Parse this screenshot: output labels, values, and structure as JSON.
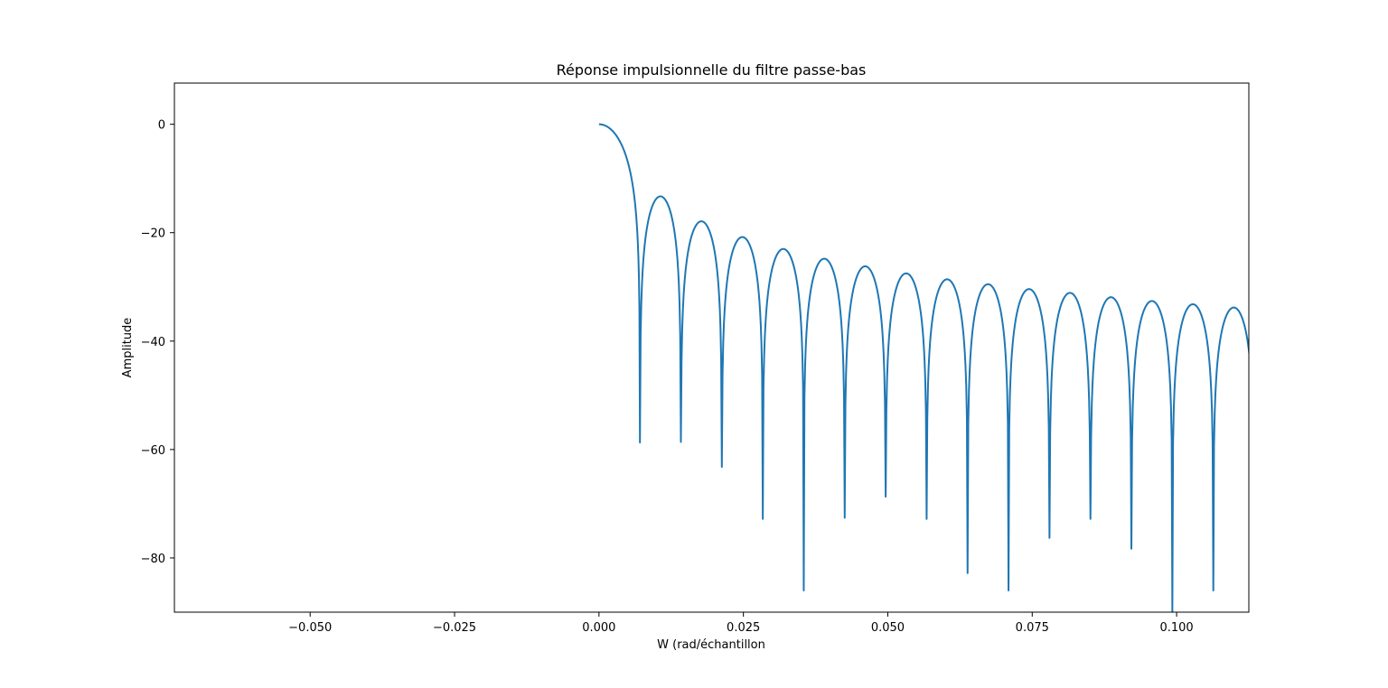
{
  "chart_data": {
    "type": "line",
    "title": "Réponse impulsionnelle du filtre passe-bas",
    "xlabel": "W (rad/échantillon",
    "ylabel": "Amplitude",
    "xlim": [
      -0.0735,
      0.1125
    ],
    "ylim": [
      -90,
      7.6
    ],
    "x_ticks": [
      -0.05,
      -0.025,
      0.0,
      0.025,
      0.05,
      0.075,
      0.1
    ],
    "x_tick_labels": [
      "−0.050",
      "−0.025",
      "0.000",
      "0.025",
      "0.050",
      "0.075",
      "0.100"
    ],
    "y_ticks": [
      0,
      -20,
      -40,
      -60,
      -80
    ],
    "y_tick_labels": [
      "0",
      "−20",
      "−40",
      "−60",
      "−80"
    ],
    "grid": false,
    "series_color": "#1f77b4",
    "series": [
      {
        "response": {
          "peak_db": 0.0,
          "null_spacing": 0.00709,
          "nulls": [
            {
              "x": 0.00709,
              "y": -58.7
            },
            {
              "x": 0.01418,
              "y": -58.6
            },
            {
              "x": 0.02127,
              "y": -63.2
            },
            {
              "x": 0.02836,
              "y": -72.8
            },
            {
              "x": 0.03545,
              "y": -86.0
            },
            {
              "x": 0.04254,
              "y": -72.6
            },
            {
              "x": 0.04963,
              "y": -68.7
            },
            {
              "x": 0.05672,
              "y": -72.8
            },
            {
              "x": 0.06381,
              "y": -82.8
            },
            {
              "x": 0.0709,
              "y": -86.0
            },
            {
              "x": 0.07799,
              "y": -76.3
            },
            {
              "x": 0.08508,
              "y": -72.8
            },
            {
              "x": 0.09217,
              "y": -78.3
            },
            {
              "x": 0.09926,
              "y": -90.0
            },
            {
              "x": 0.10635,
              "y": -86.0
            }
          ],
          "sidelobe_peaks": [
            {
              "x": 0.0103,
              "y": -13.3
            },
            {
              "x": 0.0174,
              "y": -17.9
            },
            {
              "x": 0.0245,
              "y": -20.8
            },
            {
              "x": 0.0316,
              "y": -23.0
            },
            {
              "x": 0.0387,
              "y": -24.8
            },
            {
              "x": 0.0458,
              "y": -26.2
            },
            {
              "x": 0.053,
              "y": -27.5
            },
            {
              "x": 0.0601,
              "y": -28.6
            },
            {
              "x": 0.0672,
              "y": -29.5
            },
            {
              "x": 0.0743,
              "y": -30.4
            },
            {
              "x": 0.0814,
              "y": -31.1
            },
            {
              "x": 0.0885,
              "y": -31.9
            },
            {
              "x": 0.0956,
              "y": -32.6
            },
            {
              "x": 0.1027,
              "y": -33.2
            },
            {
              "x": 0.1098,
              "y": -33.8
            }
          ]
        }
      }
    ]
  }
}
